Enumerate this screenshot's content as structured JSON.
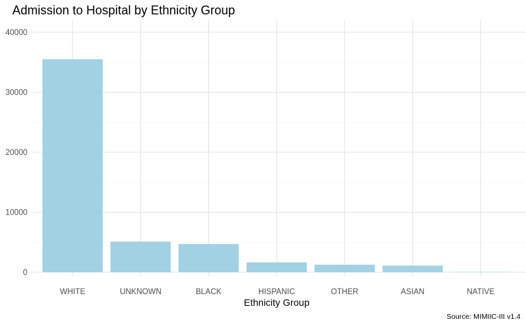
{
  "chart_data": {
    "type": "bar",
    "title": "Admission to Hospital by Ethnicity Group",
    "xlabel": "Ethnicity Group",
    "ylabel": "",
    "caption": "Source: MIMIIC-III v1.4",
    "categories": [
      "WHITE",
      "UNKNOWN",
      "BLACK",
      "HISPANIC",
      "OTHER",
      "ASIAN",
      "NATIVE"
    ],
    "values": [
      35500,
      5100,
      4700,
      1650,
      1250,
      1100,
      50
    ],
    "ylim": [
      0,
      40000
    ],
    "yticks": [
      "0",
      "10000",
      "20000",
      "30000",
      "40000"
    ],
    "grid": true,
    "legend": "none",
    "bar_color": "#a1d1e2"
  }
}
